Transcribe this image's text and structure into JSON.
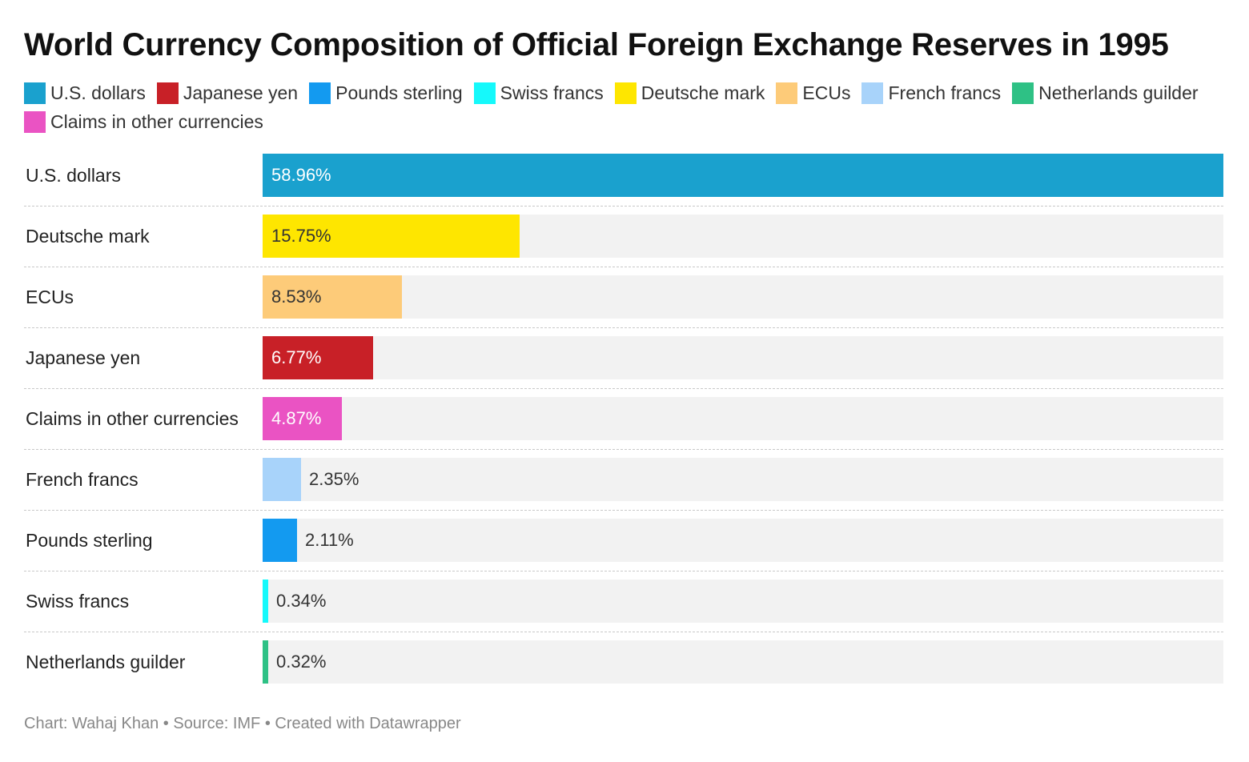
{
  "title": "World Currency Composition of Official Foreign Exchange Reserves in 1995",
  "legend": [
    {
      "label": "U.S. dollars",
      "color": "#1aa1ce"
    },
    {
      "label": "Japanese yen",
      "color": "#c82027"
    },
    {
      "label": "Pounds sterling",
      "color": "#139af0"
    },
    {
      "label": "Swiss francs",
      "color": "#15f9fb"
    },
    {
      "label": "Deutsche mark",
      "color": "#fee600"
    },
    {
      "label": "ECUs",
      "color": "#fdcb79"
    },
    {
      "label": "French francs",
      "color": "#a8d3fa"
    },
    {
      "label": "Netherlands guilder",
      "color": "#2ec185"
    },
    {
      "label": "Claims in other currencies",
      "color": "#ea53c3"
    }
  ],
  "chart_data": {
    "type": "bar",
    "orientation": "horizontal",
    "title": "World Currency Composition of Official Foreign Exchange Reserves in 1995",
    "categories": [
      "U.S. dollars",
      "Deutsche mark",
      "ECUs",
      "Japanese yen",
      "Claims in other currencies",
      "French francs",
      "Pounds sterling",
      "Swiss francs",
      "Netherlands guilder"
    ],
    "values": [
      58.96,
      15.75,
      8.53,
      6.77,
      4.87,
      2.35,
      2.11,
      0.34,
      0.32
    ],
    "value_labels": [
      "58.96%",
      "15.75%",
      "8.53%",
      "6.77%",
      "4.87%",
      "2.35%",
      "2.11%",
      "0.34%",
      "0.32%"
    ],
    "colors": [
      "#1aa1ce",
      "#fee600",
      "#fdcb79",
      "#c82027",
      "#ea53c3",
      "#a8d3fa",
      "#139af0",
      "#15f9fb",
      "#2ec185"
    ],
    "label_colors": [
      "#ffffff",
      "#333333",
      "#333333",
      "#ffffff",
      "#ffffff",
      "#333333",
      "#333333",
      "#333333",
      "#333333"
    ],
    "xlim": [
      0,
      58.96
    ],
    "grid": false,
    "legend_position": "top"
  },
  "footer": "Chart: Wahaj Khan • Source: IMF • Created with Datawrapper"
}
